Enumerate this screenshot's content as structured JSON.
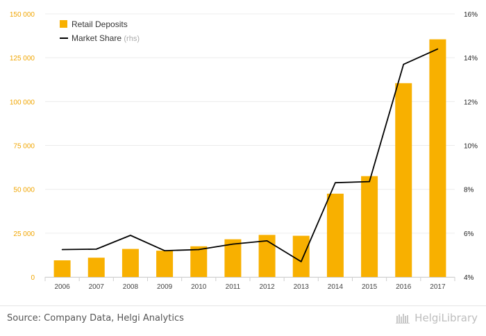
{
  "chart_data": {
    "type": "bar",
    "categories": [
      "2006",
      "2007",
      "2008",
      "2009",
      "2010",
      "2011",
      "2012",
      "2013",
      "2014",
      "2015",
      "2016",
      "2017"
    ],
    "series": [
      {
        "name": "Retail Deposits",
        "type": "bar",
        "axis": "left",
        "color": "#f8b000",
        "values": [
          9500,
          11000,
          16000,
          15000,
          17500,
          21500,
          24000,
          23500,
          47500,
          57500,
          110500,
          135500
        ]
      },
      {
        "name": "Market Share",
        "name_suffix": "(rhs)",
        "type": "line",
        "axis": "right",
        "color": "#000000",
        "values": [
          5.25,
          5.27,
          5.9,
          5.2,
          5.25,
          5.5,
          5.65,
          4.7,
          8.3,
          8.35,
          13.7,
          14.4
        ]
      }
    ],
    "y_left": {
      "ylim": [
        0,
        150000
      ],
      "ticks": [
        0,
        25000,
        50000,
        75000,
        100000,
        125000,
        150000
      ],
      "tick_labels": [
        "0",
        "25 000",
        "50 000",
        "75 000",
        "100 000",
        "125 000",
        "150 000"
      ],
      "label_color": "#f0a500"
    },
    "y_right": {
      "ylim": [
        4,
        16
      ],
      "ticks": [
        4,
        6,
        8,
        10,
        12,
        14,
        16
      ],
      "tick_labels": [
        "4%",
        "6%",
        "8%",
        "10%",
        "12%",
        "14%",
        "16%"
      ]
    },
    "grid": true,
    "legend": "top-left",
    "title": "",
    "xlabel": "",
    "ylabel": ""
  },
  "footer": {
    "source": "Source: Company Data, Helgi Analytics",
    "brand": "HelgiLibrary"
  }
}
